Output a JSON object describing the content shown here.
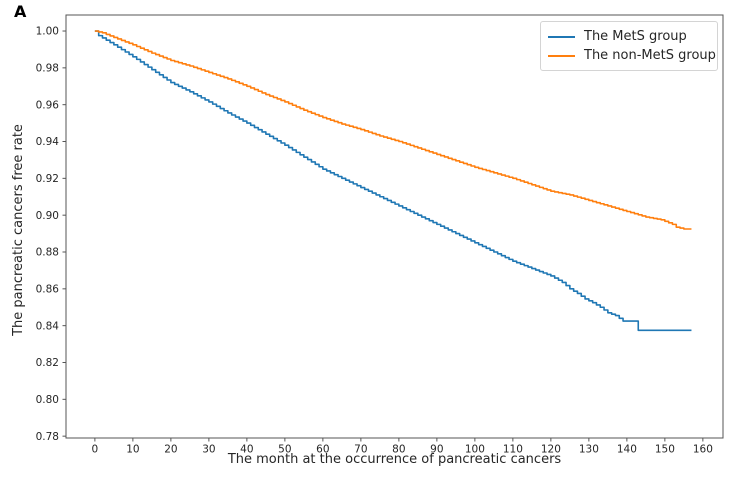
{
  "panel_label": "A",
  "chart_data": {
    "type": "line",
    "subtype": "kaplan-meier-step",
    "title": "",
    "xlabel": "The month at the occurrence of pancreatic cancers",
    "ylabel": "The pancreatic cancers free rate",
    "xlim": [
      -7.6,
      165.3
    ],
    "ylim": [
      0.779,
      1.0087
    ],
    "xticks": [
      0,
      10,
      20,
      30,
      40,
      50,
      60,
      70,
      80,
      90,
      100,
      110,
      120,
      130,
      140,
      150,
      160
    ],
    "yticks": [
      1.0,
      0.98,
      0.96,
      0.94,
      0.92,
      0.9,
      0.88,
      0.86,
      0.84,
      0.82,
      0.8,
      0.78
    ],
    "grid": false,
    "legend": {
      "position": "upper right"
    },
    "axis_color": "#555555",
    "tick_label_color": "#262626",
    "series": [
      {
        "name": "The MetS group",
        "color": "#1f77b4",
        "points": [
          [
            0,
            1.0
          ],
          [
            1,
            0.9975
          ],
          [
            3,
            0.995
          ],
          [
            5,
            0.9925
          ],
          [
            10,
            0.986
          ],
          [
            15,
            0.979
          ],
          [
            20,
            0.972
          ],
          [
            25,
            0.967
          ],
          [
            30,
            0.9615
          ],
          [
            35,
            0.9555
          ],
          [
            40,
            0.95
          ],
          [
            45,
            0.944
          ],
          [
            50,
            0.938
          ],
          [
            55,
            0.9315
          ],
          [
            60,
            0.925
          ],
          [
            65,
            0.92
          ],
          [
            70,
            0.915
          ],
          [
            75,
            0.91
          ],
          [
            80,
            0.905
          ],
          [
            85,
            0.9
          ],
          [
            90,
            0.895
          ],
          [
            95,
            0.89
          ],
          [
            100,
            0.885
          ],
          [
            105,
            0.88
          ],
          [
            110,
            0.875
          ],
          [
            115,
            0.871
          ],
          [
            120,
            0.867
          ],
          [
            123,
            0.8635
          ],
          [
            125,
            0.86
          ],
          [
            127,
            0.8575
          ],
          [
            129,
            0.8545
          ],
          [
            131,
            0.8525
          ],
          [
            133,
            0.85
          ],
          [
            135,
            0.847
          ],
          [
            137,
            0.8455
          ],
          [
            139,
            0.8425
          ],
          [
            142,
            0.8425
          ],
          [
            143,
            0.8375
          ],
          [
            157,
            0.8375
          ]
        ]
      },
      {
        "name": "The non-MetS group",
        "color": "#ff7f0e",
        "points": [
          [
            0,
            1.0
          ],
          [
            2,
            0.999
          ],
          [
            5,
            0.9965
          ],
          [
            10,
            0.9925
          ],
          [
            15,
            0.988
          ],
          [
            20,
            0.984
          ],
          [
            25,
            0.981
          ],
          [
            30,
            0.9775
          ],
          [
            35,
            0.974
          ],
          [
            40,
            0.97
          ],
          [
            45,
            0.9655
          ],
          [
            50,
            0.9615
          ],
          [
            55,
            0.957
          ],
          [
            60,
            0.953
          ],
          [
            65,
            0.9495
          ],
          [
            70,
            0.9465
          ],
          [
            75,
            0.943
          ],
          [
            80,
            0.94
          ],
          [
            85,
            0.9365
          ],
          [
            90,
            0.933
          ],
          [
            95,
            0.9295
          ],
          [
            100,
            0.926
          ],
          [
            105,
            0.923
          ],
          [
            110,
            0.92
          ],
          [
            115,
            0.9165
          ],
          [
            120,
            0.913
          ],
          [
            125,
            0.911
          ],
          [
            130,
            0.908
          ],
          [
            135,
            0.905
          ],
          [
            140,
            0.902
          ],
          [
            145,
            0.899
          ],
          [
            149,
            0.8975
          ],
          [
            152,
            0.895
          ],
          [
            153,
            0.8935
          ],
          [
            155,
            0.8925
          ],
          [
            157,
            0.8925
          ]
        ]
      }
    ]
  }
}
